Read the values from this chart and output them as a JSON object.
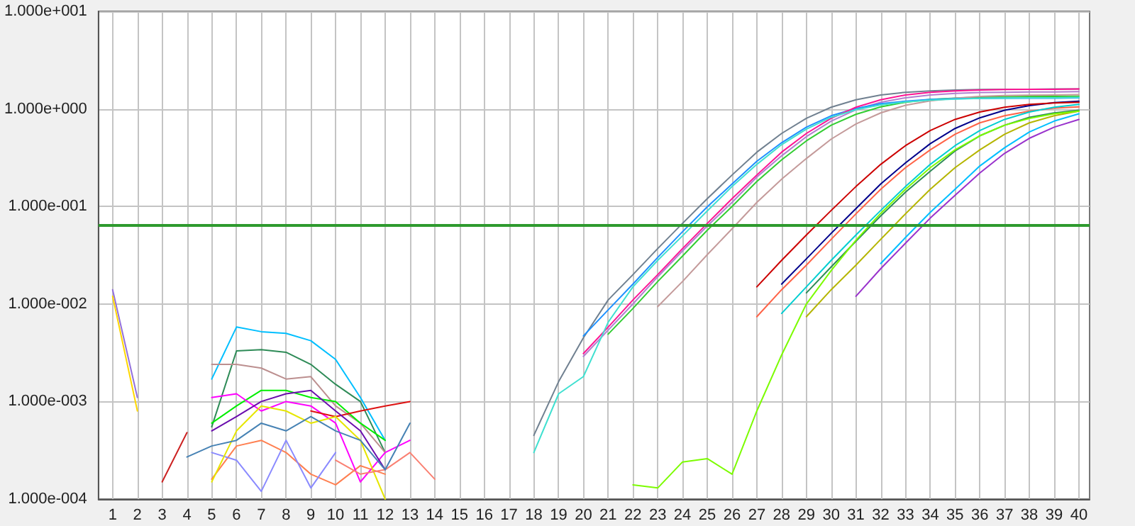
{
  "chart_data": {
    "type": "line",
    "log": "y",
    "grid": true,
    "marker": "none",
    "line_style": "solid",
    "xlim": [
      0.43,
      40.43
    ],
    "xticks": [
      1,
      2,
      3,
      4,
      5,
      6,
      7,
      8,
      9,
      10,
      11,
      12,
      13,
      14,
      15,
      16,
      17,
      18,
      19,
      20,
      21,
      22,
      23,
      24,
      25,
      26,
      27,
      28,
      29,
      30,
      31,
      32,
      33,
      34,
      35,
      36,
      37,
      38,
      39,
      40
    ],
    "ylim": [
      0.0001,
      10
    ],
    "yticks": [
      {
        "value": 0.0001,
        "label": "1.000e-004"
      },
      {
        "value": 0.001,
        "label": "1.000e-003"
      },
      {
        "value": 0.01,
        "label": "1.000e-002"
      },
      {
        "value": 0.1,
        "label": "1.000e-001"
      },
      {
        "value": 1,
        "label": "1.000e+000"
      },
      {
        "value": 10,
        "label": "1.000e+001"
      }
    ],
    "ref_lines": [
      {
        "axis": "y",
        "value": 0.065,
        "color": "#2e9a2e"
      }
    ],
    "series": [
      {
        "color": "#708090",
        "x": [
          18,
          19,
          20,
          21,
          22,
          23,
          24,
          25,
          26,
          27,
          28,
          29,
          30,
          31,
          32,
          33,
          34,
          35,
          36,
          37,
          38,
          39,
          40
        ],
        "values": [
          0.00045,
          0.0016,
          0.0045,
          0.011,
          0.02,
          0.037,
          0.067,
          0.12,
          0.21,
          0.36,
          0.56,
          0.8,
          1.04,
          1.24,
          1.39,
          1.48,
          1.53,
          1.56,
          1.58,
          1.59,
          1.59,
          1.6,
          1.6
        ]
      },
      {
        "color": "#b07fd0",
        "x": [
          20,
          21,
          22,
          23,
          24,
          25,
          26,
          27,
          28,
          29,
          30,
          31,
          32,
          33,
          34,
          35,
          36,
          37,
          38,
          39,
          40
        ],
        "values": [
          0.0029,
          0.0054,
          0.01,
          0.019,
          0.035,
          0.063,
          0.11,
          0.2,
          0.33,
          0.52,
          0.75,
          0.98,
          1.17,
          1.3,
          1.39,
          1.44,
          1.47,
          1.48,
          1.49,
          1.49,
          1.5
        ]
      },
      {
        "color": "#32cd32",
        "x": [
          21,
          22,
          23,
          24,
          25,
          26,
          27,
          28,
          29,
          30,
          31,
          32,
          33,
          34,
          35,
          36,
          37,
          38,
          39,
          40
        ],
        "values": [
          0.0049,
          0.009,
          0.017,
          0.031,
          0.057,
          0.1,
          0.18,
          0.3,
          0.47,
          0.68,
          0.88,
          1.05,
          1.17,
          1.25,
          1.29,
          1.32,
          1.33,
          1.34,
          1.34,
          1.35
        ]
      },
      {
        "color": "#c49a9a",
        "x": [
          23,
          24,
          25,
          26,
          27,
          28,
          29,
          30,
          31,
          32,
          33,
          34,
          35,
          36,
          37,
          38,
          39,
          40
        ],
        "values": [
          0.0094,
          0.017,
          0.032,
          0.059,
          0.11,
          0.19,
          0.31,
          0.49,
          0.7,
          0.91,
          1.09,
          1.21,
          1.29,
          1.34,
          1.37,
          1.38,
          1.39,
          1.4
        ]
      },
      {
        "color": "#1e90ff",
        "x": [
          20,
          21,
          22,
          23,
          24,
          25,
          26,
          27,
          28,
          29,
          30,
          31,
          32,
          33,
          34,
          35,
          36,
          37,
          38,
          39,
          40
        ],
        "values": [
          0.0047,
          0.0087,
          0.016,
          0.03,
          0.055,
          0.099,
          0.17,
          0.29,
          0.45,
          0.65,
          0.85,
          1.01,
          1.13,
          1.2,
          1.25,
          1.27,
          1.28,
          1.29,
          1.29,
          1.29,
          1.3
        ]
      },
      {
        "color": "#ff1493",
        "x": [
          20,
          21,
          22,
          23,
          24,
          25,
          26,
          27,
          28,
          29,
          30,
          31,
          32,
          33,
          34,
          35,
          36,
          37,
          38,
          39,
          40
        ],
        "values": [
          0.0031,
          0.0058,
          0.011,
          0.02,
          0.037,
          0.067,
          0.12,
          0.21,
          0.36,
          0.56,
          0.8,
          1.04,
          1.24,
          1.39,
          1.48,
          1.53,
          1.56,
          1.58,
          1.59,
          1.59,
          1.6
        ]
      },
      {
        "color": "#40e0d0",
        "x": [
          18,
          19,
          20,
          21,
          22,
          23,
          24,
          25,
          26,
          27,
          28,
          29,
          30,
          31,
          32,
          33,
          34,
          35,
          36,
          37,
          38,
          39,
          40
        ],
        "values": [
          0.0003,
          0.0012,
          0.0018,
          0.0065,
          0.015,
          0.028,
          0.05,
          0.09,
          0.16,
          0.27,
          0.43,
          0.62,
          0.82,
          0.98,
          1.1,
          1.18,
          1.23,
          1.26,
          1.28,
          1.29,
          1.3,
          1.3,
          1.31
        ]
      },
      {
        "color": "#00008b",
        "x": [
          28,
          29,
          30,
          31,
          32,
          33,
          34,
          35,
          36,
          37,
          38,
          39,
          40
        ],
        "values": [
          0.016,
          0.029,
          0.053,
          0.095,
          0.17,
          0.28,
          0.44,
          0.63,
          0.81,
          0.97,
          1.08,
          1.16,
          1.2
        ]
      },
      {
        "color": "#ff6347",
        "x": [
          27,
          28,
          29,
          30,
          31,
          32,
          33,
          34,
          35,
          36,
          37,
          38,
          39,
          40
        ],
        "values": [
          0.0074,
          0.014,
          0.025,
          0.046,
          0.084,
          0.15,
          0.25,
          0.38,
          0.55,
          0.72,
          0.85,
          0.95,
          1.02,
          1.05
        ]
      },
      {
        "color": "#00ced1",
        "x": [
          28,
          29,
          30,
          31,
          32,
          33,
          34,
          35,
          36,
          37,
          38,
          39,
          40
        ],
        "values": [
          0.008,
          0.015,
          0.028,
          0.051,
          0.091,
          0.16,
          0.27,
          0.42,
          0.6,
          0.78,
          0.93,
          1.04,
          1.11
        ]
      },
      {
        "color": "#2e8b57",
        "x": [
          29,
          30,
          31,
          32,
          33,
          34,
          35,
          36,
          37,
          38,
          39,
          40
        ],
        "values": [
          0.013,
          0.024,
          0.044,
          0.08,
          0.14,
          0.23,
          0.37,
          0.53,
          0.68,
          0.82,
          0.91,
          0.97
        ]
      },
      {
        "color": "#b5b500",
        "x": [
          29,
          30,
          31,
          32,
          33,
          34,
          35,
          36,
          37,
          38,
          39,
          40
        ],
        "values": [
          0.0074,
          0.014,
          0.025,
          0.046,
          0.084,
          0.15,
          0.25,
          0.38,
          0.55,
          0.72,
          0.85,
          0.95
        ]
      },
      {
        "color": "#00bfff",
        "x": [
          32,
          33,
          34,
          35,
          36,
          37,
          38,
          39,
          40
        ],
        "values": [
          0.026,
          0.048,
          0.087,
          0.15,
          0.26,
          0.4,
          0.58,
          0.75,
          0.89
        ]
      },
      {
        "color": "#9932cc",
        "x": [
          31,
          32,
          33,
          34,
          35,
          36,
          37,
          38,
          39,
          40
        ],
        "values": [
          0.012,
          0.023,
          0.042,
          0.076,
          0.13,
          0.22,
          0.35,
          0.5,
          0.65,
          0.78
        ]
      },
      {
        "color": "#cc0000",
        "x": [
          27,
          28,
          29,
          30,
          31,
          32,
          33,
          34,
          35,
          36,
          37,
          38,
          39,
          40
        ],
        "values": [
          0.015,
          0.028,
          0.051,
          0.091,
          0.16,
          0.27,
          0.42,
          0.6,
          0.78,
          0.93,
          1.04,
          1.11,
          1.15,
          1.17
        ]
      },
      {
        "color": "#7cfc00",
        "x": [
          22,
          23,
          24,
          25,
          26,
          27,
          28,
          29,
          30,
          31,
          32,
          33,
          34,
          35,
          36,
          37,
          38,
          39,
          40
        ],
        "values": [
          0.00014,
          0.00013,
          0.00024,
          0.00026,
          0.00018,
          0.0008,
          0.003,
          0.01,
          0.022,
          0.045,
          0.085,
          0.15,
          0.25,
          0.38,
          0.53,
          0.68,
          0.8,
          0.89,
          0.95
        ]
      },
      {
        "color": "#9370db",
        "x": [
          1,
          2
        ],
        "values": [
          0.014,
          0.0011
        ]
      },
      {
        "color": "#ffd700",
        "x": [
          1,
          2
        ],
        "values": [
          0.012,
          0.0008
        ]
      },
      {
        "color": "#cc2222",
        "x": [
          3,
          4
        ],
        "values": [
          0.00015,
          0.00048
        ]
      },
      {
        "color": "#00bfff",
        "x": [
          5,
          6,
          7,
          8,
          9,
          10,
          11,
          12
        ],
        "values": [
          0.0017,
          0.0058,
          0.0052,
          0.005,
          0.0042,
          0.0027,
          0.0011,
          0.0004
        ]
      },
      {
        "color": "#2e8b57",
        "x": [
          5,
          6,
          7,
          8,
          9,
          10,
          11,
          12
        ],
        "values": [
          0.00055,
          0.0033,
          0.0034,
          0.0032,
          0.0024,
          0.0015,
          0.001,
          0.0003
        ]
      },
      {
        "color": "#bc8f8f",
        "x": [
          5,
          6,
          7,
          8,
          9,
          10,
          11,
          12
        ],
        "values": [
          0.0024,
          0.0024,
          0.0022,
          0.0017,
          0.0018,
          0.0009,
          0.0006,
          0.0003
        ]
      },
      {
        "color": "#00ee00",
        "x": [
          5,
          6,
          7,
          8,
          9,
          10,
          11,
          12
        ],
        "values": [
          0.0006,
          0.0009,
          0.0013,
          0.0013,
          0.0011,
          0.001,
          0.0006,
          0.0004
        ]
      },
      {
        "color": "#ff7f50",
        "x": [
          5,
          6,
          7,
          8,
          9,
          10,
          11,
          12
        ],
        "values": [
          0.00016,
          0.00035,
          0.0004,
          0.0003,
          0.00018,
          0.00014,
          0.00022,
          0.00018
        ]
      },
      {
        "color": "#8a8aff",
        "x": [
          5,
          6,
          7,
          8,
          9,
          10
        ],
        "values": [
          0.0003,
          0.00025,
          0.00012,
          0.0004,
          0.00013,
          0.0003
        ]
      },
      {
        "color": "#ff00ff",
        "x": [
          5,
          6,
          7,
          8,
          9,
          10,
          11,
          12,
          13
        ],
        "values": [
          0.0011,
          0.0012,
          0.0008,
          0.001,
          0.0009,
          0.0006,
          0.00015,
          0.0003,
          0.0004
        ]
      },
      {
        "color": "#dd1111",
        "x": [
          9,
          10,
          11,
          12,
          13
        ],
        "values": [
          0.0008,
          0.0007,
          0.0008,
          0.0009,
          0.001
        ]
      },
      {
        "color": "#6a0dad",
        "x": [
          5,
          6,
          7,
          8,
          9,
          10,
          11,
          12
        ],
        "values": [
          0.0005,
          0.0007,
          0.001,
          0.0012,
          0.0013,
          0.0008,
          0.0005,
          0.0002
        ]
      },
      {
        "color": "#e6e600",
        "x": [
          5,
          6,
          7,
          8,
          9,
          10,
          11,
          12
        ],
        "values": [
          0.00015,
          0.0005,
          0.0009,
          0.0008,
          0.0006,
          0.0007,
          0.0004,
          0.0001
        ]
      },
      {
        "color": "#fa8072",
        "x": [
          10,
          11,
          12,
          13,
          14
        ],
        "values": [
          0.00025,
          0.00018,
          0.0002,
          0.0003,
          0.00016
        ]
      },
      {
        "color": "#4682b4",
        "x": [
          4,
          5,
          6,
          7,
          8,
          9,
          10,
          11,
          12,
          13
        ],
        "values": [
          0.00027,
          0.00035,
          0.0004,
          0.0006,
          0.0005,
          0.0007,
          0.0005,
          0.0004,
          0.0002,
          0.0006
        ]
      }
    ]
  }
}
